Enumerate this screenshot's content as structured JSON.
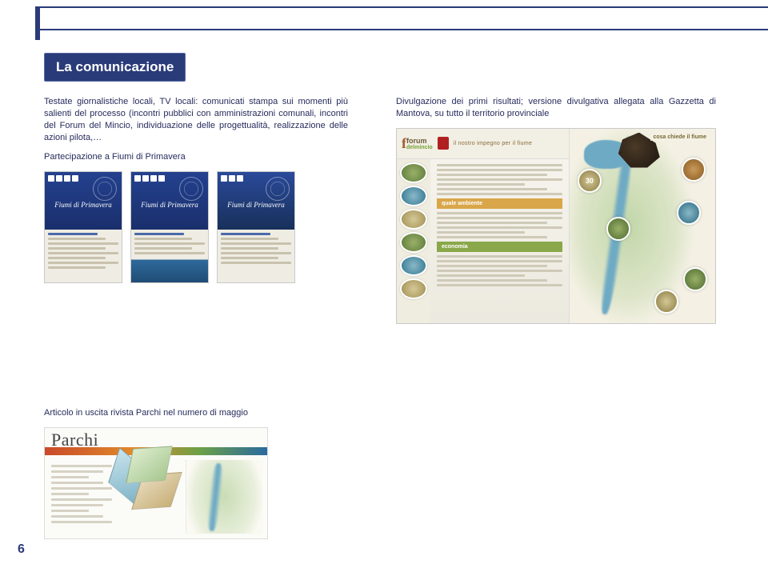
{
  "title": "La comunicazione",
  "left_para": "Testate giornalistiche locali, TV locali: comunicati stampa sui momenti più salienti del processo (incontri pubblici con amministrazioni comunali, incontri del Forum del Mincio, individuazione delle progettualità, realizzazione delle azioni pilota,…",
  "left_sub": "Partecipazione a Fiumi di Primavera",
  "right_para": "Divulgazione dei primi risultati; versione divulgativa allegata alla Gazzetta di Mantova, su tutto il territorio provinciale",
  "poster_title": "Fiumi di Primavera",
  "brochure_forum": "forum",
  "brochure_forum_sub": "delmincio",
  "brochure_tag": "il nostro impegno per il fiume",
  "brochure_band1": "quale ambiente",
  "brochure_band2": "economia",
  "brochure_right_title": "cosa chiede il fiume",
  "article_label": "Articolo in uscita rivista Parchi nel numero di maggio",
  "parchi_title": "Parchi",
  "page_number": "6",
  "colors": {
    "navy": "#2a3b7a",
    "text": "#262b5c"
  }
}
